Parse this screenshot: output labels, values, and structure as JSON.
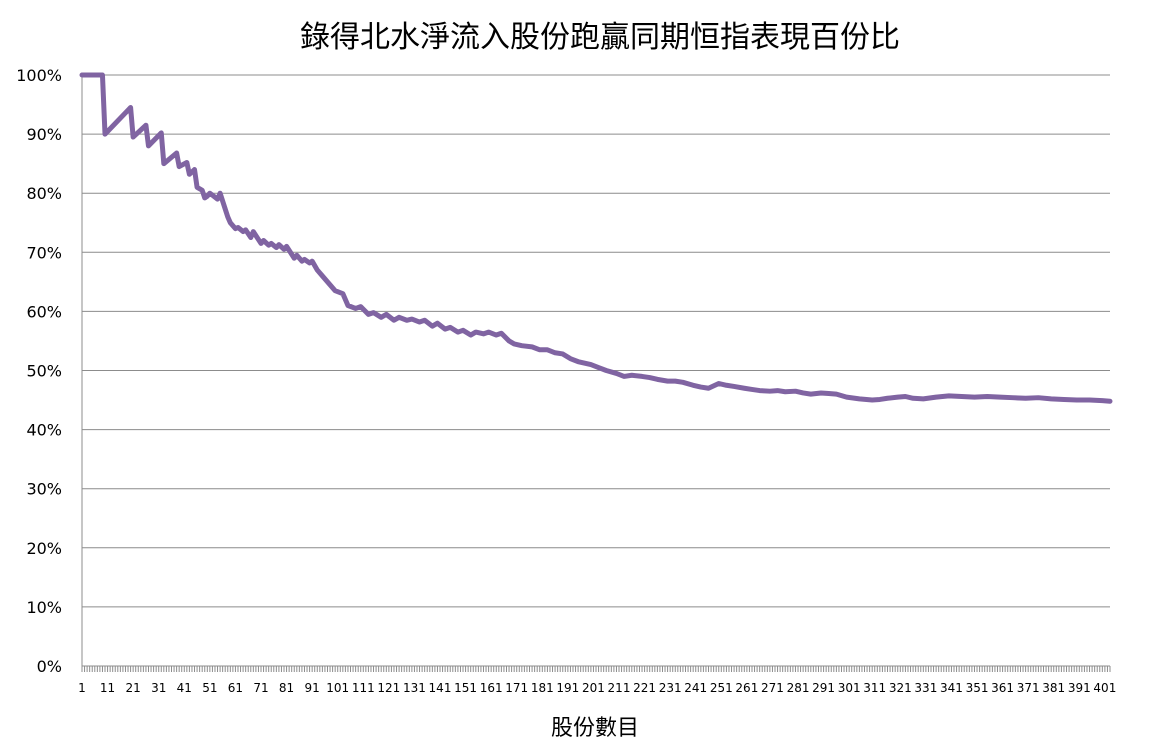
{
  "chart_data": {
    "type": "line",
    "title": "錄得北水淨流入股份跑贏同期恒指表現百份比",
    "xlabel": "股份數目",
    "ylabel": "",
    "ylim": [
      0,
      100
    ],
    "y_ticks": [
      "0%",
      "10%",
      "20%",
      "30%",
      "40%",
      "50%",
      "60%",
      "70%",
      "80%",
      "90%",
      "100%"
    ],
    "x_ticks": [
      "1",
      "11",
      "21",
      "31",
      "41",
      "51",
      "61",
      "71",
      "81",
      "91",
      "101",
      "111",
      "121",
      "131",
      "141",
      "151",
      "161",
      "171",
      "181",
      "191",
      "201",
      "211",
      "221",
      "231",
      "241",
      "251",
      "261",
      "271",
      "281",
      "291",
      "301",
      "311",
      "321",
      "331",
      "341",
      "351",
      "361",
      "371",
      "381",
      "391",
      "401"
    ],
    "x_range": [
      1,
      403
    ],
    "grid": "horizontal",
    "legend": "none",
    "colors": {
      "series": "#8064a2",
      "grid": "#8c8c8c"
    },
    "series": [
      {
        "x": [
          1,
          9,
          10,
          20,
          21,
          26,
          27,
          32,
          33,
          38,
          39,
          42,
          43,
          45,
          46,
          48,
          49,
          50,
          51,
          54,
          55,
          58,
          59,
          61,
          62,
          64,
          65,
          67,
          68,
          71,
          72,
          74,
          75,
          77,
          78,
          80,
          81,
          84,
          85,
          87,
          88,
          90,
          91,
          93,
          95,
          100,
          103,
          105,
          108,
          110,
          113,
          115,
          118,
          120,
          123,
          125,
          128,
          130,
          133,
          135,
          138,
          140,
          143,
          145,
          148,
          150,
          153,
          155,
          158,
          160,
          163,
          165,
          168,
          170,
          173,
          177,
          180,
          183,
          186,
          189,
          192,
          195,
          200,
          203,
          206,
          210,
          213,
          216,
          220,
          223,
          226,
          230,
          233,
          236,
          240,
          243,
          246,
          250,
          253,
          256,
          260,
          263,
          266,
          270,
          273,
          276,
          280,
          283,
          286,
          290,
          293,
          296,
          300,
          305,
          310,
          313,
          316,
          320,
          323,
          326,
          330,
          335,
          340,
          345,
          350,
          355,
          360,
          365,
          370,
          375,
          380,
          385,
          390,
          395,
          400,
          403
        ],
        "y": [
          100,
          100,
          90,
          94.5,
          89.5,
          91.5,
          88,
          90.2,
          85,
          86.8,
          84.5,
          85.2,
          83.2,
          84,
          81,
          80.5,
          79.2,
          79.5,
          80,
          79,
          80,
          76,
          75,
          74,
          74.2,
          73.5,
          73.8,
          72.5,
          73.5,
          71.5,
          72,
          71.2,
          71.5,
          70.8,
          71.3,
          70.5,
          71,
          69,
          69.5,
          68.5,
          68.8,
          68.2,
          68.5,
          67,
          66,
          63.5,
          63,
          61,
          60.5,
          60.8,
          59.5,
          59.8,
          59,
          59.5,
          58.5,
          59,
          58.5,
          58.7,
          58.2,
          58.5,
          57.5,
          58,
          57,
          57.3,
          56.5,
          56.8,
          56,
          56.5,
          56.2,
          56.5,
          56,
          56.3,
          55,
          54.5,
          54.2,
          54,
          53.5,
          53.5,
          53,
          52.8,
          52,
          51.5,
          51,
          50.5,
          50,
          49.5,
          49,
          49.2,
          49,
          48.8,
          48.5,
          48.2,
          48.2,
          48,
          47.5,
          47.2,
          47,
          47.8,
          47.5,
          47.3,
          47,
          46.8,
          46.6,
          46.5,
          46.6,
          46.4,
          46.5,
          46.2,
          46,
          46.2,
          46.1,
          46,
          45.5,
          45.2,
          45,
          45.1,
          45.3,
          45.5,
          45.6,
          45.3,
          45.2,
          45.5,
          45.7,
          45.6,
          45.5,
          45.6,
          45.5,
          45.4,
          45.3,
          45.4,
          45.2,
          45.1,
          45,
          45,
          44.9,
          44.8
        ]
      }
    ]
  }
}
